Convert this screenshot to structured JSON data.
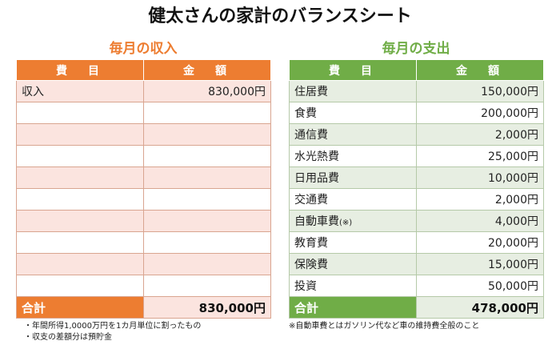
{
  "title": "健太さんの家計のバランスシート",
  "income": {
    "section_title": "毎月の収入",
    "headers": [
      "費　目",
      "金　額"
    ],
    "rows": [
      {
        "name": "収入",
        "amount": "830,000円"
      },
      {
        "name": "",
        "amount": ""
      },
      {
        "name": "",
        "amount": ""
      },
      {
        "name": "",
        "amount": ""
      },
      {
        "name": "",
        "amount": ""
      },
      {
        "name": "",
        "amount": ""
      },
      {
        "name": "",
        "amount": ""
      },
      {
        "name": "",
        "amount": ""
      },
      {
        "name": "",
        "amount": ""
      },
      {
        "name": "",
        "amount": ""
      }
    ],
    "total_label": "合計",
    "total_amount": "830,000円",
    "notes": [
      "・年間所得1,0000万円を1カ月単位に割ったもの",
      "・収支の差額分は預貯金"
    ]
  },
  "expense": {
    "section_title": "毎月の支出",
    "headers": [
      "費　目",
      "金　額"
    ],
    "rows": [
      {
        "name": "住居費",
        "amount": "150,000円"
      },
      {
        "name": "食費",
        "amount": "200,000円"
      },
      {
        "name": "通信費",
        "amount": "2,000円"
      },
      {
        "name": "水光熱費",
        "amount": "25,000円"
      },
      {
        "name": "日用品費",
        "amount": "10,000円"
      },
      {
        "name": "交通費",
        "amount": "2,000円"
      },
      {
        "name": "自動車費",
        "note": "(※)",
        "amount": "4,000円"
      },
      {
        "name": "教育費",
        "amount": "20,000円"
      },
      {
        "name": "保険費",
        "amount": "15,000円"
      },
      {
        "name": "投資",
        "amount": "50,000円"
      }
    ],
    "total_label": "合計",
    "total_amount": "478,000円",
    "notes": [
      "※自動車費とはガソリン代など車の維持費全般のこと"
    ]
  }
}
